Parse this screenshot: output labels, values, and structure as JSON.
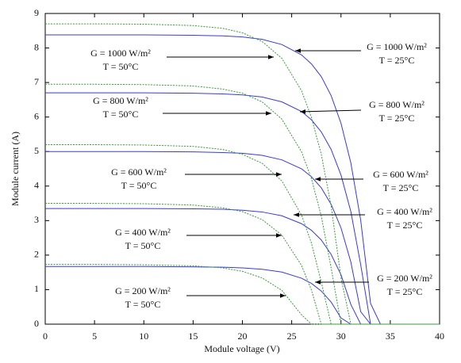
{
  "chart_data": {
    "type": "line",
    "xlabel": "Module voltage (V)",
    "ylabel": "Module current (A)",
    "xlim": [
      0,
      40
    ],
    "ylim": [
      0,
      9
    ],
    "xticks": [
      0,
      5,
      10,
      15,
      20,
      25,
      30,
      35,
      40
    ],
    "yticks": [
      0,
      1,
      2,
      3,
      4,
      5,
      6,
      7,
      8,
      9
    ],
    "grid": false,
    "x": [
      0,
      5,
      10,
      15,
      18,
      20,
      22,
      24,
      26,
      27,
      28,
      29,
      30,
      31,
      32,
      33,
      34,
      40
    ],
    "series": [
      {
        "color": "#3a3ad8",
        "dashed": false,
        "values": [
          8.38,
          8.38,
          8.38,
          8.37,
          8.35,
          8.32,
          8.25,
          8.1,
          7.8,
          7.54,
          7.17,
          6.62,
          5.82,
          4.67,
          3.01,
          0.6,
          0,
          0
        ]
      },
      {
        "color": "#3a3ad8",
        "dashed": false,
        "values": [
          6.7,
          6.7,
          6.7,
          6.69,
          6.67,
          6.64,
          6.58,
          6.44,
          6.16,
          5.92,
          5.57,
          5.06,
          4.32,
          3.26,
          1.72,
          0,
          0,
          0
        ]
      },
      {
        "color": "#3a3ad8",
        "dashed": false,
        "values": [
          5.0,
          5.0,
          5.0,
          4.99,
          4.97,
          4.95,
          4.89,
          4.76,
          4.5,
          4.27,
          3.95,
          3.47,
          2.79,
          1.8,
          0.36,
          0,
          0,
          0
        ]
      },
      {
        "color": "#3a3ad8",
        "dashed": false,
        "values": [
          3.35,
          3.35,
          3.35,
          3.34,
          3.33,
          3.3,
          3.25,
          3.14,
          2.91,
          2.72,
          2.44,
          2.02,
          1.43,
          0.57,
          0,
          0,
          0,
          0
        ]
      },
      {
        "color": "#3a3ad8",
        "dashed": false,
        "values": [
          1.67,
          1.67,
          1.67,
          1.66,
          1.65,
          1.63,
          1.59,
          1.51,
          1.33,
          1.18,
          0.96,
          0.64,
          0.18,
          0,
          0,
          0,
          0,
          0
        ]
      },
      {
        "color": "#3c9a3c",
        "dashed": true,
        "values": [
          8.7,
          8.7,
          8.69,
          8.65,
          8.57,
          8.44,
          8.19,
          7.7,
          6.76,
          5.99,
          4.92,
          3.42,
          1.34,
          0,
          0,
          0,
          0,
          0
        ]
      },
      {
        "color": "#3c9a3c",
        "dashed": true,
        "values": [
          6.95,
          6.95,
          6.94,
          6.9,
          6.81,
          6.69,
          6.44,
          5.94,
          4.99,
          4.22,
          3.13,
          1.63,
          0,
          0,
          0,
          0,
          0,
          0
        ]
      },
      {
        "color": "#3c9a3c",
        "dashed": true,
        "values": [
          5.2,
          5.2,
          5.19,
          5.15,
          5.06,
          4.92,
          4.66,
          4.15,
          3.16,
          2.35,
          1.22,
          0,
          0,
          0,
          0,
          0,
          0,
          0
        ]
      },
      {
        "color": "#3c9a3c",
        "dashed": true,
        "values": [
          3.5,
          3.5,
          3.49,
          3.45,
          3.37,
          3.26,
          3.03,
          2.58,
          1.7,
          0.99,
          0,
          0,
          0,
          0,
          0,
          0,
          0,
          0
        ]
      },
      {
        "color": "#3c9a3c",
        "dashed": true,
        "values": [
          1.73,
          1.73,
          1.72,
          1.69,
          1.63,
          1.53,
          1.34,
          0.98,
          0.27,
          0,
          0,
          0,
          0,
          0,
          0,
          0,
          0,
          0
        ]
      }
    ],
    "annotations": [
      [
        "G = 1000 W/m²",
        "T = 50°C"
      ],
      [
        "G = 1000 W/m²",
        "T = 25°C"
      ],
      [
        "G = 800 W/m²",
        "T = 50°C"
      ],
      [
        "G = 800 W/m²",
        "T = 25°C"
      ],
      [
        "G = 600 W/m²",
        "T = 50°C"
      ],
      [
        "G = 600 W/m²",
        "T = 25°C"
      ],
      [
        "G = 400 W/m²",
        "T = 50°C"
      ],
      [
        "G = 400 W/m²",
        "T = 25°C"
      ],
      [
        "G = 200 W/m²",
        "T = 50°C"
      ],
      [
        "G = 200 W/m²",
        "T = 25°C"
      ]
    ]
  }
}
